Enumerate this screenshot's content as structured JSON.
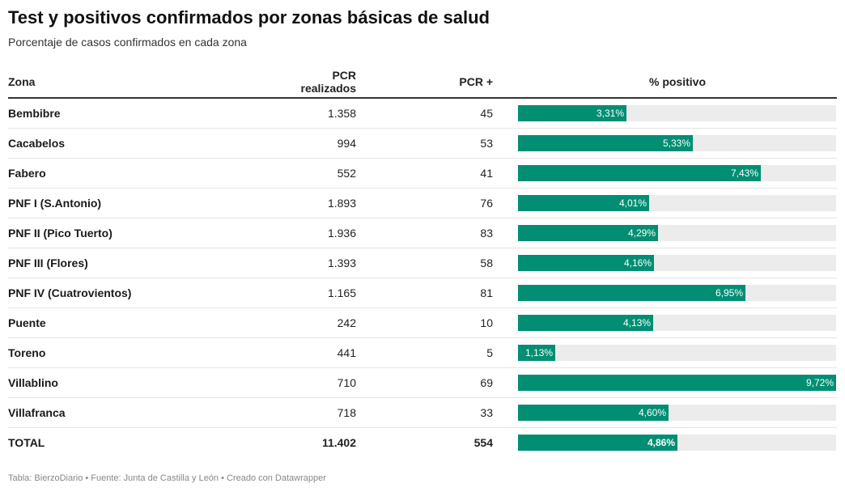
{
  "title": "Test y positivos confirmados por zonas básicas de salud",
  "subtitle": "Porcentaje de casos confirmados en cada zona",
  "footer": "Tabla: BierzoDiario • Fuente: Junta de Castilla y León • Creado con Datawrapper",
  "colors": {
    "bar": "#028e73",
    "track": "#ececec"
  },
  "chart_data": {
    "type": "table",
    "columns": [
      "Zona",
      "PCR realizados",
      "PCR +",
      "% positivo"
    ],
    "bar_max": 9.72,
    "rows": [
      {
        "zona": "Bembibre",
        "pcr": "1.358",
        "pos": "45",
        "pct": 3.31,
        "pct_label": "3,31%"
      },
      {
        "zona": "Cacabelos",
        "pcr": "994",
        "pos": "53",
        "pct": 5.33,
        "pct_label": "5,33%"
      },
      {
        "zona": "Fabero",
        "pcr": "552",
        "pos": "41",
        "pct": 7.43,
        "pct_label": "7,43%"
      },
      {
        "zona": "PNF I (S.Antonio)",
        "pcr": "1.893",
        "pos": "76",
        "pct": 4.01,
        "pct_label": "4,01%"
      },
      {
        "zona": "PNF II (Pico Tuerto)",
        "pcr": "1.936",
        "pos": "83",
        "pct": 4.29,
        "pct_label": "4,29%"
      },
      {
        "zona": "PNF III (Flores)",
        "pcr": "1.393",
        "pos": "58",
        "pct": 4.16,
        "pct_label": "4,16%"
      },
      {
        "zona": "PNF IV (Cuatrovientos)",
        "pcr": "1.165",
        "pos": "81",
        "pct": 6.95,
        "pct_label": "6,95%"
      },
      {
        "zona": "Puente",
        "pcr": "242",
        "pos": "10",
        "pct": 4.13,
        "pct_label": "4,13%"
      },
      {
        "zona": "Toreno",
        "pcr": "441",
        "pos": "5",
        "pct": 1.13,
        "pct_label": "1,13%"
      },
      {
        "zona": "Villablino",
        "pcr": "710",
        "pos": "69",
        "pct": 9.72,
        "pct_label": "9,72%"
      },
      {
        "zona": "Villafranca",
        "pcr": "718",
        "pos": "33",
        "pct": 4.6,
        "pct_label": "4,60%"
      }
    ],
    "total": {
      "zona": "TOTAL",
      "pcr": "11.402",
      "pos": "554",
      "pct": 4.86,
      "pct_label": "4,86%"
    }
  }
}
